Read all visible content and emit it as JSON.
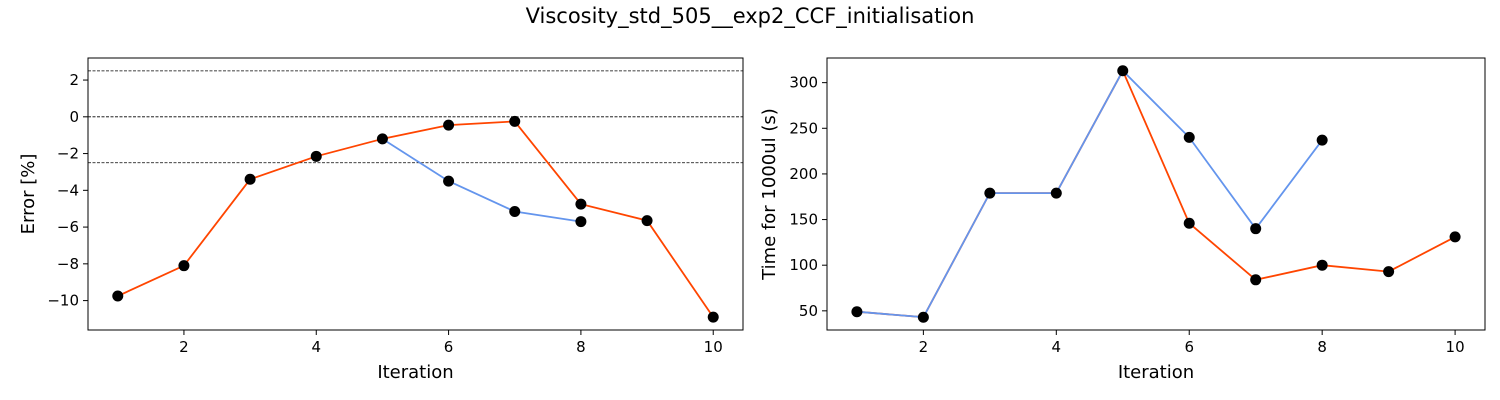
{
  "figure": {
    "title": "Viscosity_std_505__exp2_CCF_initialisation"
  },
  "chart_data": [
    {
      "type": "line",
      "xlabel": "Iteration",
      "ylabel": "Error [%]",
      "xlim": [
        0.55,
        10.45
      ],
      "ylim": [
        -11.6,
        3.2
      ],
      "xticks": [
        2,
        4,
        6,
        8,
        10
      ],
      "yticks": [
        2,
        0,
        -2,
        -4,
        -6,
        -8,
        -10
      ],
      "reference_lines": [
        2.5,
        0,
        -2.5
      ],
      "series": [
        {
          "color": "#ff4500",
          "x": [
            1,
            2,
            3,
            4,
            5,
            6,
            7,
            8,
            9,
            10
          ],
          "y": [
            -9.75,
            -8.1,
            -3.4,
            -2.15,
            -1.2,
            -0.45,
            -0.25,
            -4.75,
            -5.65,
            -10.9
          ]
        },
        {
          "color": "#6495ed",
          "x": [
            5,
            6,
            7,
            8
          ],
          "y": [
            -1.2,
            -3.5,
            -5.15,
            -5.7
          ]
        }
      ],
      "points": {
        "color": "#000000",
        "x": [
          1,
          2,
          3,
          4,
          5,
          6,
          7,
          8,
          9,
          10,
          6,
          7,
          8
        ],
        "y": [
          -9.75,
          -8.1,
          -3.4,
          -2.15,
          -1.2,
          -0.45,
          -0.25,
          -4.75,
          -5.65,
          -10.9,
          -3.5,
          -5.15,
          -5.7
        ]
      },
      "grid": false
    },
    {
      "type": "line",
      "xlabel": "Iteration",
      "ylabel": "Time for 1000ul (s)",
      "xlim": [
        0.55,
        10.45
      ],
      "ylim": [
        29,
        327
      ],
      "xticks": [
        2,
        4,
        6,
        8,
        10
      ],
      "yticks": [
        300,
        250,
        200,
        150,
        100,
        50
      ],
      "reference_lines": [],
      "series": [
        {
          "color": "#ff4500",
          "x": [
            1,
            2,
            3,
            4,
            5,
            6,
            7,
            8,
            9,
            10
          ],
          "y": [
            49,
            43,
            179,
            179,
            313,
            146,
            84,
            100,
            93,
            131
          ]
        },
        {
          "color": "#6495ed",
          "x": [
            1,
            2,
            3,
            4,
            5,
            6,
            7,
            8
          ],
          "y": [
            49,
            43,
            179,
            179,
            313,
            240,
            140,
            237
          ]
        }
      ],
      "points": {
        "color": "#000000",
        "x": [
          1,
          2,
          3,
          4,
          5,
          6,
          7,
          8,
          9,
          10,
          6,
          7,
          8
        ],
        "y": [
          49,
          43,
          179,
          179,
          313,
          146,
          84,
          100,
          93,
          131,
          240,
          140,
          237
        ]
      },
      "grid": false
    }
  ]
}
